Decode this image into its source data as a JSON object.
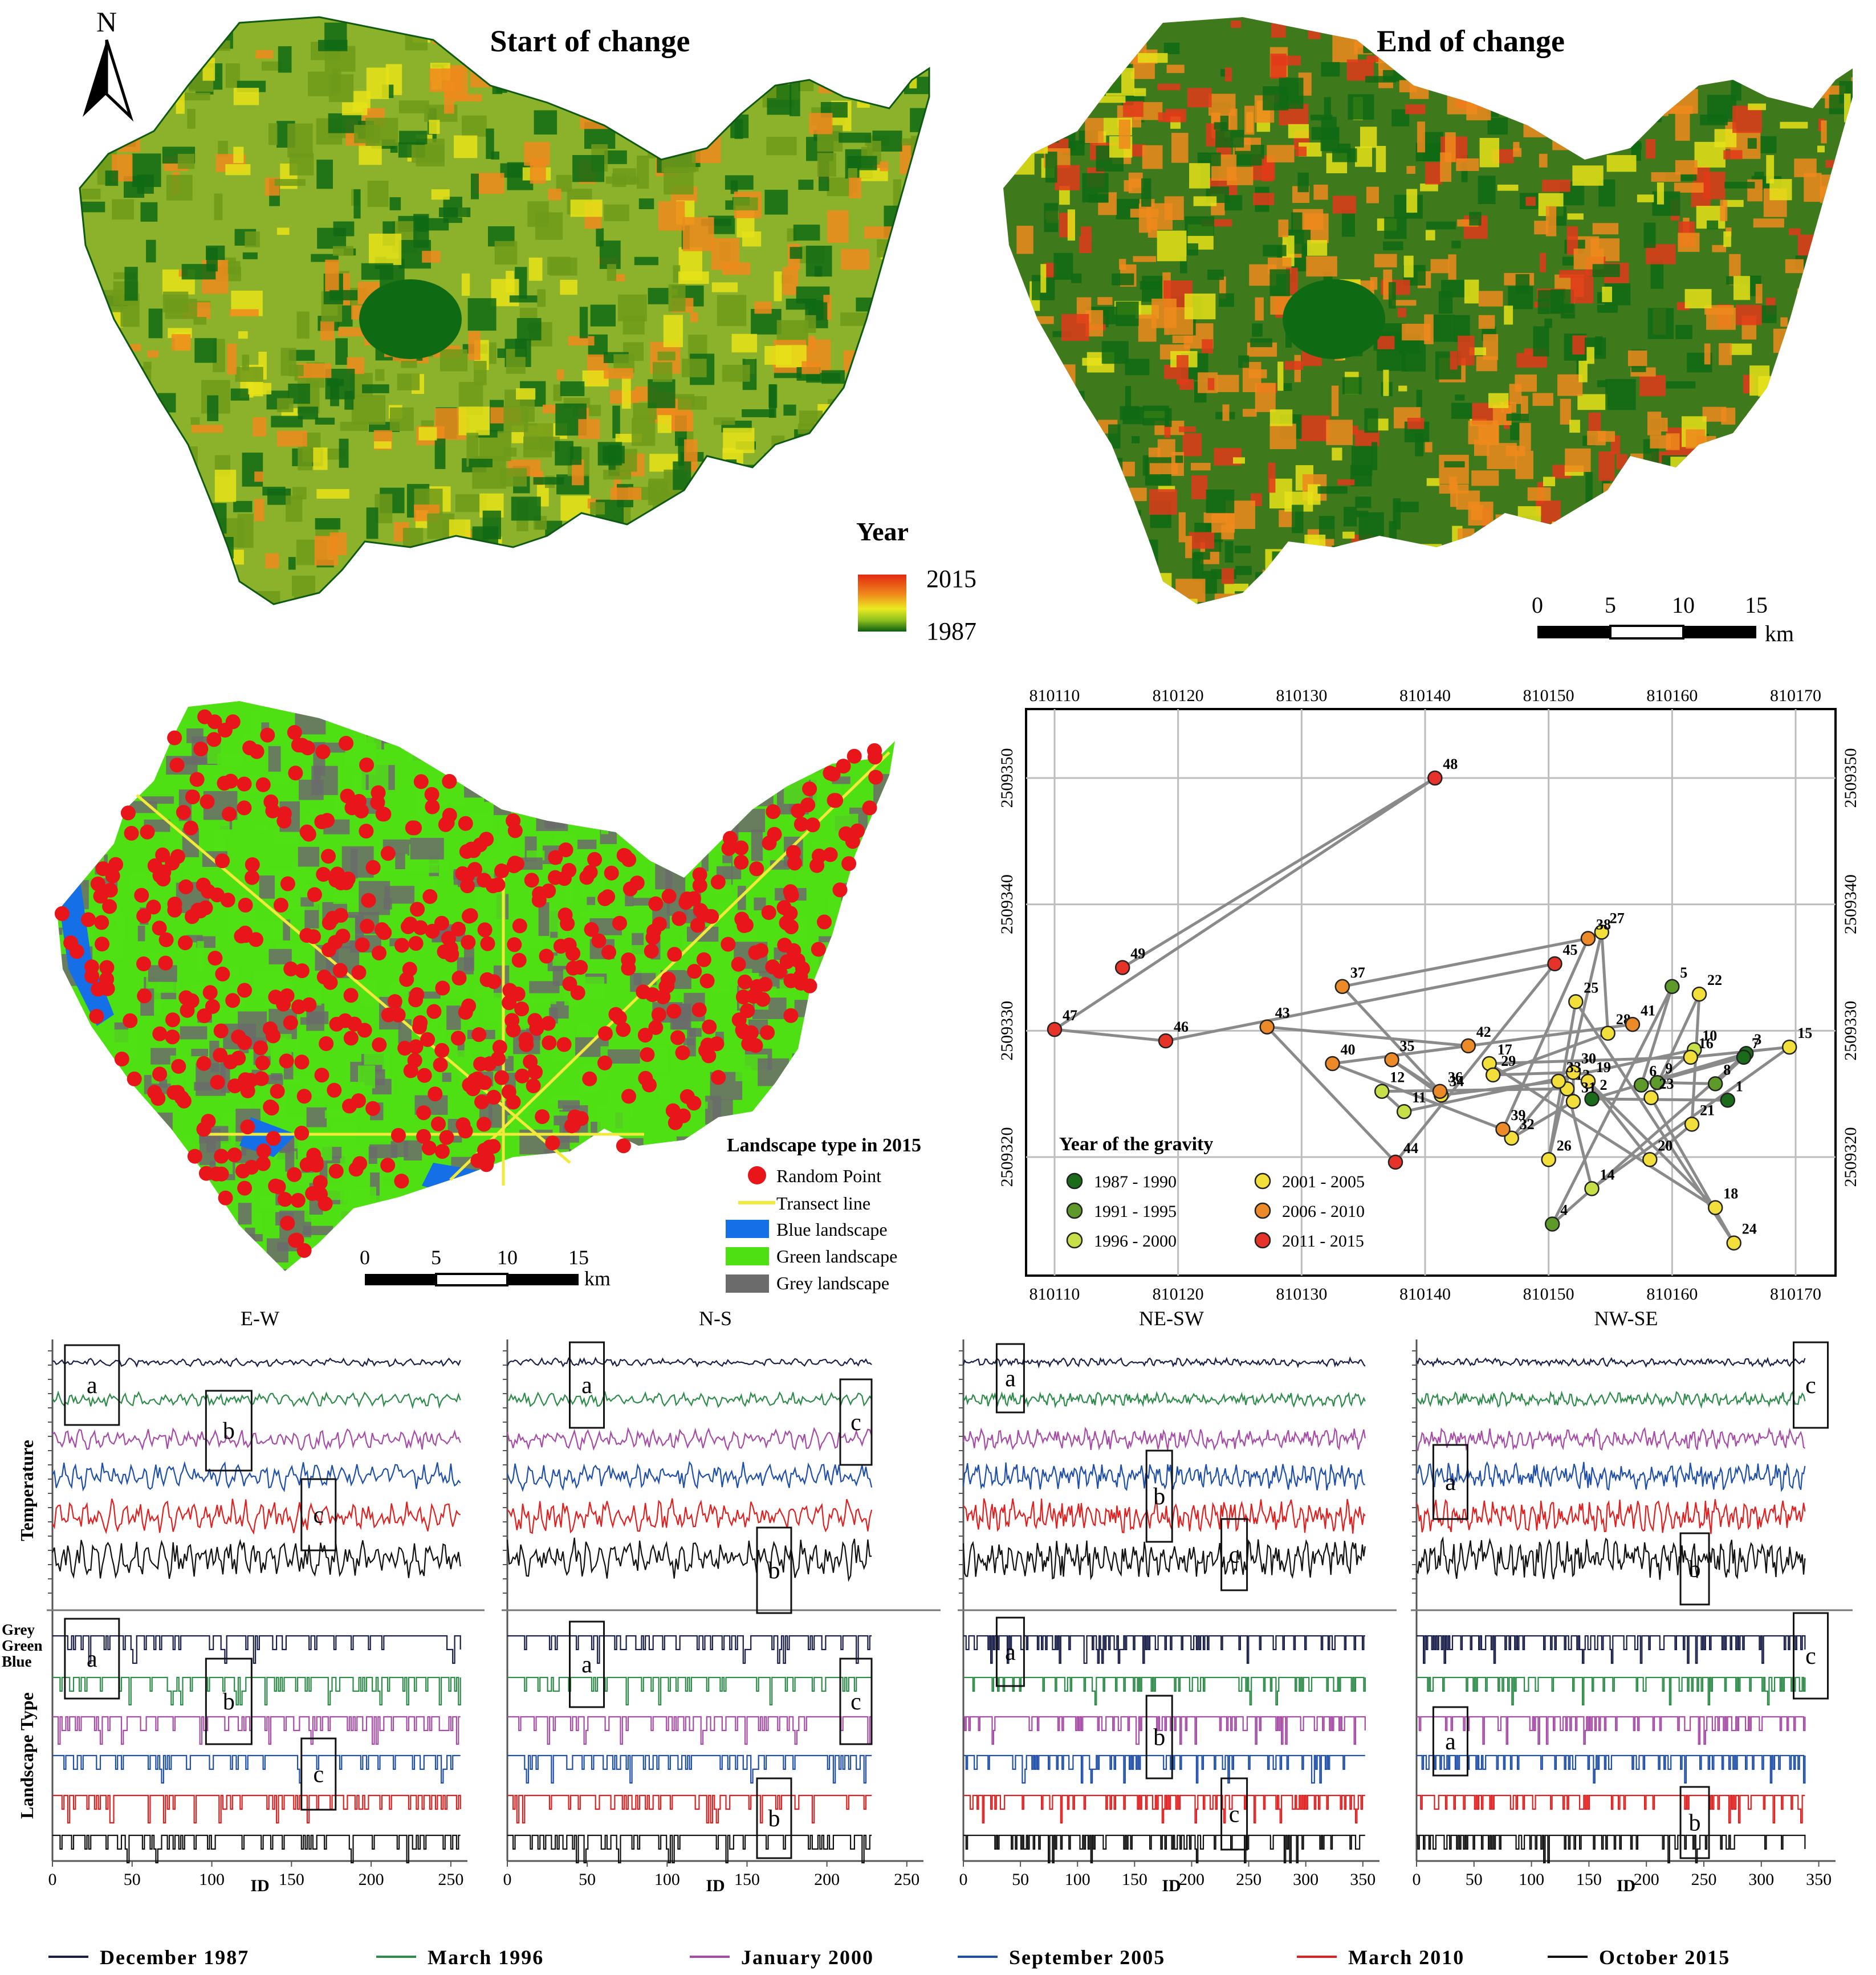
{
  "maps": {
    "start_title": "Start of change",
    "end_title": "End of change",
    "north_label": "N",
    "year_legend": {
      "title": "Year",
      "max": "2015",
      "min": "1987"
    },
    "scale_top": {
      "ticks": [
        "0",
        "5",
        "10",
        "15"
      ],
      "unit": "km"
    },
    "scale_mid": {
      "ticks": [
        "0",
        "5",
        "10",
        "15"
      ],
      "unit": "km"
    },
    "landscape_legend": {
      "title": "Landscape type in 2015",
      "items": [
        {
          "label": "Random Point",
          "color": "#e8151a"
        },
        {
          "label": "Transect line",
          "color": "#f2ea3a"
        },
        {
          "label": "Blue landscape",
          "color": "#1570e8"
        },
        {
          "label": "Green landscape",
          "color": "#4fe014"
        },
        {
          "label": "Grey landscape",
          "color": "#6b6b6b"
        }
      ]
    },
    "colors": {
      "dark_green": "#0f6a14",
      "olive": "#6e9a1a",
      "yellow": "#e6e219",
      "orange": "#ee8a1c",
      "red": "#e23a1a"
    }
  },
  "chart_data": [
    {
      "type": "scatter",
      "x_ticks": [
        "810110",
        "810120",
        "810130",
        "810140",
        "810150",
        "810160",
        "810170"
      ],
      "y_ticks": [
        "2509320",
        "2509330",
        "2509340",
        "2509350"
      ],
      "xlim": [
        810110,
        810170
      ],
      "ylim": [
        2509310,
        2509355
      ],
      "legend_title": "Year of the gravity",
      "legend_position": "bottom-left",
      "grid": true,
      "categories": [
        {
          "label": "1987 - 1990",
          "color": "#1a6b1a"
        },
        {
          "label": "1991 - 1995",
          "color": "#5e9a2a"
        },
        {
          "label": "1996 - 2000",
          "color": "#c7e04a"
        },
        {
          "label": "2001 - 2005",
          "color": "#f3df3b"
        },
        {
          "label": "2006 - 2010",
          "color": "#ec8a2a"
        },
        {
          "label": "2011 - 2015",
          "color": "#e5332a"
        }
      ],
      "points": [
        {
          "id": 1,
          "x": 810164.5,
          "y": 2509324.5,
          "cat": 0
        },
        {
          "id": 2,
          "x": 810153.5,
          "y": 2509324.6,
          "cat": 0
        },
        {
          "id": 3,
          "x": 810166.0,
          "y": 2509328.2,
          "cat": 0
        },
        {
          "id": 4,
          "x": 810150.3,
          "y": 2509314.7,
          "cat": 1
        },
        {
          "id": 5,
          "x": 810160.0,
          "y": 2509333.5,
          "cat": 1
        },
        {
          "id": 6,
          "x": 810157.5,
          "y": 2509325.7,
          "cat": 1
        },
        {
          "id": 7,
          "x": 810165.8,
          "y": 2509327.9,
          "cat": 0
        },
        {
          "id": 8,
          "x": 810163.5,
          "y": 2509325.8,
          "cat": 1
        },
        {
          "id": 9,
          "x": 810158.8,
          "y": 2509325.9,
          "cat": 1
        },
        {
          "id": 10,
          "x": 810161.8,
          "y": 2509328.5,
          "cat": 2
        },
        {
          "id": 11,
          "x": 810138.3,
          "y": 2509323.6,
          "cat": 2
        },
        {
          "id": 12,
          "x": 810136.5,
          "y": 2509325.2,
          "cat": 2
        },
        {
          "id": 13,
          "x": 810151.5,
          "y": 2509325.4,
          "cat": 3
        },
        {
          "id": 14,
          "x": 810153.5,
          "y": 2509317.5,
          "cat": 2
        },
        {
          "id": 15,
          "x": 810169.5,
          "y": 2509328.7,
          "cat": 3
        },
        {
          "id": 16,
          "x": 810161.5,
          "y": 2509327.9,
          "cat": 3
        },
        {
          "id": 17,
          "x": 810145.2,
          "y": 2509327.4,
          "cat": 3
        },
        {
          "id": 18,
          "x": 810163.5,
          "y": 2509316.0,
          "cat": 3
        },
        {
          "id": 19,
          "x": 810153.2,
          "y": 2509326.0,
          "cat": 3
        },
        {
          "id": 20,
          "x": 810158.2,
          "y": 2509319.8,
          "cat": 3
        },
        {
          "id": 21,
          "x": 810161.6,
          "y": 2509322.6,
          "cat": 3
        },
        {
          "id": 22,
          "x": 810162.2,
          "y": 2509332.9,
          "cat": 3
        },
        {
          "id": 23,
          "x": 810158.3,
          "y": 2509324.7,
          "cat": 3
        },
        {
          "id": 24,
          "x": 810165.0,
          "y": 2509313.2,
          "cat": 3
        },
        {
          "id": 25,
          "x": 810152.2,
          "y": 2509332.3,
          "cat": 3
        },
        {
          "id": 26,
          "x": 810150.0,
          "y": 2509319.8,
          "cat": 3
        },
        {
          "id": 27,
          "x": 810154.3,
          "y": 2509337.8,
          "cat": 3
        },
        {
          "id": 28,
          "x": 810154.8,
          "y": 2509329.8,
          "cat": 3
        },
        {
          "id": 29,
          "x": 810145.5,
          "y": 2509326.5,
          "cat": 3
        },
        {
          "id": 30,
          "x": 810152.0,
          "y": 2509326.7,
          "cat": 3
        },
        {
          "id": 31,
          "x": 810152.0,
          "y": 2509324.4,
          "cat": 3
        },
        {
          "id": 32,
          "x": 810147.0,
          "y": 2509321.5,
          "cat": 3
        },
        {
          "id": 33,
          "x": 810150.8,
          "y": 2509326.0,
          "cat": 3
        },
        {
          "id": 34,
          "x": 810141.3,
          "y": 2509324.9,
          "cat": 3
        },
        {
          "id": 35,
          "x": 810137.3,
          "y": 2509327.7,
          "cat": 4
        },
        {
          "id": 36,
          "x": 810141.2,
          "y": 2509325.2,
          "cat": 4
        },
        {
          "id": 37,
          "x": 810133.3,
          "y": 2509333.5,
          "cat": 4
        },
        {
          "id": 38,
          "x": 810153.2,
          "y": 2509337.3,
          "cat": 4
        },
        {
          "id": 39,
          "x": 810146.3,
          "y": 2509322.2,
          "cat": 4
        },
        {
          "id": 40,
          "x": 810132.5,
          "y": 2509327.4,
          "cat": 4
        },
        {
          "id": 41,
          "x": 810156.8,
          "y": 2509330.5,
          "cat": 4
        },
        {
          "id": 42,
          "x": 810143.5,
          "y": 2509328.8,
          "cat": 4
        },
        {
          "id": 43,
          "x": 810127.2,
          "y": 2509330.3,
          "cat": 4
        },
        {
          "id": 44,
          "x": 810137.6,
          "y": 2509319.6,
          "cat": 5
        },
        {
          "id": 45,
          "x": 810150.5,
          "y": 2509335.3,
          "cat": 5
        },
        {
          "id": 46,
          "x": 810119.0,
          "y": 2509329.2,
          "cat": 5
        },
        {
          "id": 47,
          "x": 810110.0,
          "y": 2509330.1,
          "cat": 5
        },
        {
          "id": 48,
          "x": 810140.8,
          "y": 2509350.0,
          "cat": 5
        },
        {
          "id": 49,
          "x": 810115.5,
          "y": 2509335.0,
          "cat": 5
        }
      ]
    },
    {
      "type": "line",
      "transects": [
        {
          "label": "E-W",
          "x_max": 256,
          "x_ticks": [
            "0",
            "50",
            "100",
            "150",
            "200",
            "250"
          ]
        },
        {
          "label": "N-S",
          "x_max": 228,
          "x_ticks": [
            "0",
            "50",
            "100",
            "150",
            "200",
            "250"
          ]
        },
        {
          "label": "NE-SW",
          "x_max": 352,
          "x_ticks": [
            "0",
            "50",
            "100",
            "150",
            "200",
            "250",
            "300",
            "350"
          ]
        },
        {
          "label": "NW-SE",
          "x_max": 338,
          "x_ticks": [
            "0",
            "50",
            "100",
            "150",
            "200",
            "250",
            "300",
            "350"
          ]
        }
      ],
      "ylabel_top": "Temperature",
      "ylabel_bottom": "Landscape Type",
      "type_levels": [
        "Grey",
        "Green",
        "Blue"
      ],
      "xlabel": "ID",
      "box_letters": [
        "a",
        "b",
        "c"
      ],
      "series": [
        {
          "name": "December 1987",
          "color": "#1a1f4a"
        },
        {
          "name": "March 1996",
          "color": "#2e8b4a"
        },
        {
          "name": "January 2000",
          "color": "#a64ca6"
        },
        {
          "name": "September 2005",
          "color": "#1f4fa8"
        },
        {
          "name": "March 2010",
          "color": "#e02020"
        },
        {
          "name": "October 2015",
          "color": "#111111"
        }
      ]
    }
  ]
}
